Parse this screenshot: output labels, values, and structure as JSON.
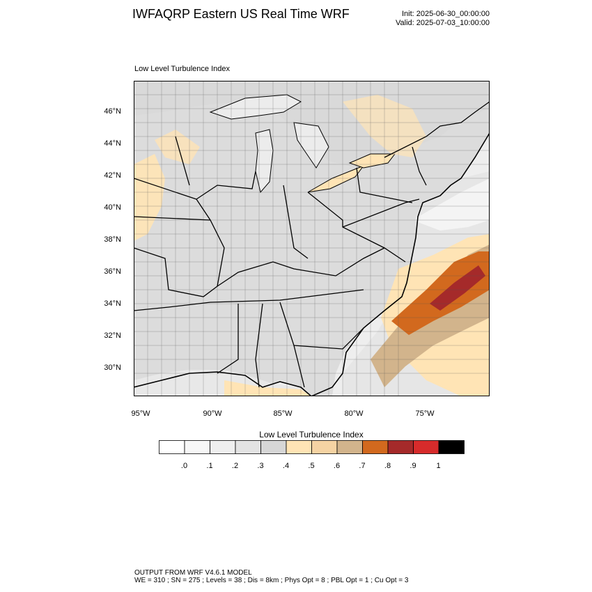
{
  "header": {
    "title": "IWFAQRP Eastern US Real Time WRF",
    "init": "Init: 2025-06-30_00:00:00",
    "valid": "Valid: 2025-07-03_10:00:00"
  },
  "map": {
    "subtitle": "Low Level Turbulence Index",
    "lat_labels": [
      "46°N",
      "44°N",
      "42°N",
      "40°N",
      "38°N",
      "36°N",
      "34°N",
      "32°N",
      "30°N"
    ],
    "lon_labels": [
      "95°W",
      "90°W",
      "85°W",
      "80°W",
      "75°W"
    ]
  },
  "colorbar": {
    "title": "Low Level Turbulence Index",
    "colors": [
      "#ffffff",
      "#f7f7f7",
      "#efefef",
      "#e3e3e3",
      "#d6d6d6",
      "#ffe4b5",
      "#f5d3a3",
      "#d2b48c",
      "#d2691e",
      "#a52a2a",
      "#d72b2b",
      "#000000"
    ],
    "labels": [
      ".0",
      ".1",
      ".2",
      ".3",
      ".4",
      ".5",
      ".6",
      ".7",
      ".8",
      ".9",
      "1"
    ]
  },
  "footer": {
    "line1": "OUTPUT FROM WRF V4.6.1 MODEL",
    "line2": "WE = 310 ; SN = 275 ; Levels = 38 ; Dis = 8km ; Phys Opt = 8 ; PBL Opt = 1 ; Cu Opt = 3"
  }
}
